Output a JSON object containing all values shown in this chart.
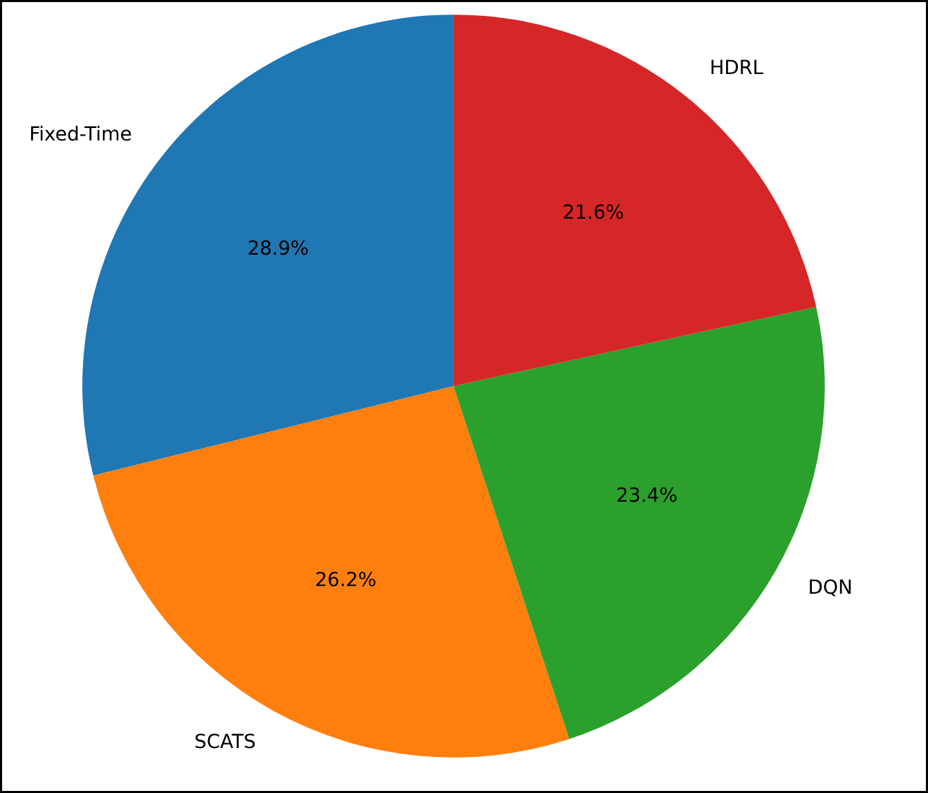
{
  "chart_data": {
    "type": "pie",
    "categories": [
      "Fixed-Time",
      "SCATS",
      "DQN",
      "HDRL"
    ],
    "values": [
      28.9,
      26.2,
      23.4,
      21.6
    ],
    "colors": [
      "#1f77b4",
      "#ff7f0e",
      "#2ca02c",
      "#d62728"
    ],
    "value_labels": [
      "28.9%",
      "26.2%",
      "23.4%",
      "21.6%"
    ]
  }
}
